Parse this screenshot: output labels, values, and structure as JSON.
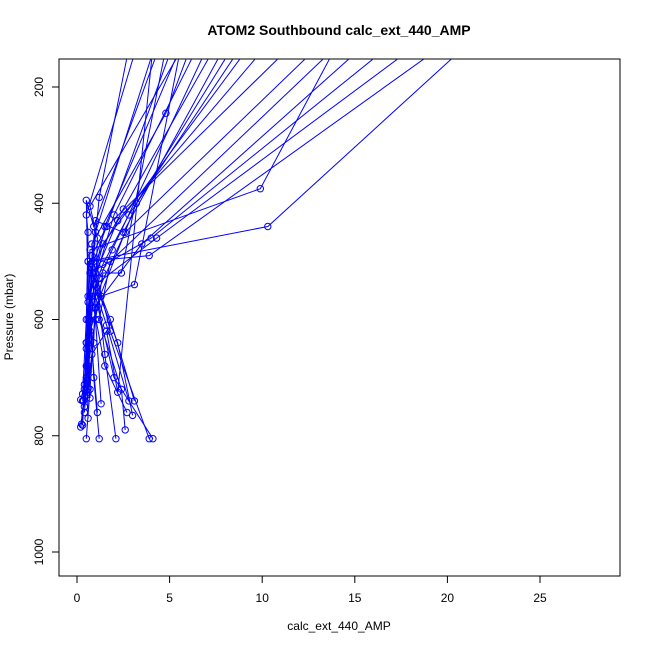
{
  "chart_data": {
    "type": "line",
    "title": "ATOM2 Southbound calc_ext_440_AMP",
    "xlabel": "calc_ext_440_AMP",
    "ylabel": "Pressure (mbar)",
    "xlim": [
      0,
      29
    ],
    "ylim": [
      1040,
      160
    ],
    "y_reversed": true,
    "xticks": [
      0,
      5,
      10,
      15,
      20,
      25
    ],
    "yticks": [
      200,
      400,
      600,
      800,
      1000
    ],
    "grid": false,
    "color": "#0000ff",
    "series": [
      {
        "points": [
          [
            0.2,
            785
          ],
          [
            0.5,
            700
          ],
          [
            0.8,
            520
          ],
          [
            1.2,
            390
          ],
          [
            3.0,
            100
          ]
        ]
      },
      {
        "points": [
          [
            0.3,
            782
          ],
          [
            0.4,
            720
          ],
          [
            0.6,
            600
          ],
          [
            1.0,
            450
          ],
          [
            4.5,
            100
          ]
        ]
      },
      {
        "points": [
          [
            0.25,
            780
          ],
          [
            0.35,
            740
          ],
          [
            0.5,
            650
          ],
          [
            0.9,
            500
          ],
          [
            5.5,
            100
          ]
        ]
      },
      {
        "points": [
          [
            0.3,
            740
          ],
          [
            0.5,
            680
          ],
          [
            0.7,
            560
          ],
          [
            1.5,
            440
          ],
          [
            6.0,
            100
          ]
        ]
      },
      {
        "points": [
          [
            0.2,
            738
          ],
          [
            0.6,
            690
          ],
          [
            0.9,
            540
          ],
          [
            2.0,
            420
          ],
          [
            7.0,
            100
          ]
        ]
      },
      {
        "points": [
          [
            0.4,
            750
          ],
          [
            0.5,
            640
          ],
          [
            0.8,
            510
          ],
          [
            2.5,
            410
          ],
          [
            8.0,
            100
          ]
        ]
      },
      {
        "points": [
          [
            0.5,
            805
          ],
          [
            0.7,
            720
          ],
          [
            1.0,
            580
          ],
          [
            3.2,
            400
          ],
          [
            9.0,
            100
          ]
        ]
      },
      {
        "points": [
          [
            1.2,
            805
          ],
          [
            0.9,
            700
          ],
          [
            0.7,
            560
          ],
          [
            1.4,
            470
          ],
          [
            10.0,
            100
          ]
        ]
      },
      {
        "points": [
          [
            2.1,
            805
          ],
          [
            1.5,
            660
          ],
          [
            1.0,
            520
          ],
          [
            2.2,
            430
          ],
          [
            11.0,
            100
          ]
        ]
      },
      {
        "points": [
          [
            3.9,
            805
          ],
          [
            1.8,
            620
          ],
          [
            0.8,
            490
          ],
          [
            1.6,
            440
          ],
          [
            12.5,
            100
          ]
        ]
      },
      {
        "points": [
          [
            4.1,
            805
          ],
          [
            2.0,
            700
          ],
          [
            1.0,
            560
          ],
          [
            2.6,
            450
          ],
          [
            14.0,
            100
          ]
        ]
      },
      {
        "points": [
          [
            2.6,
            790
          ],
          [
            2.4,
            720
          ],
          [
            1.2,
            600
          ],
          [
            1.8,
            500
          ],
          [
            15.0,
            100
          ]
        ]
      },
      {
        "points": [
          [
            2.7,
            760
          ],
          [
            1.5,
            680
          ],
          [
            0.9,
            580
          ],
          [
            3.5,
            470
          ],
          [
            16.5,
            100
          ]
        ]
      },
      {
        "points": [
          [
            2.8,
            740
          ],
          [
            1.6,
            610
          ],
          [
            0.7,
            520
          ],
          [
            4.0,
            460
          ],
          [
            18.0,
            100
          ]
        ]
      },
      {
        "points": [
          [
            3.0,
            765
          ],
          [
            2.2,
            640
          ],
          [
            1.0,
            540
          ],
          [
            4.3,
            460
          ],
          [
            19.5,
            100
          ]
        ]
      },
      {
        "points": [
          [
            3.1,
            740
          ],
          [
            1.8,
            600
          ],
          [
            0.6,
            500
          ],
          [
            3.9,
            490
          ],
          [
            21.0,
            100
          ]
        ]
      },
      {
        "points": [
          [
            1.3,
            745
          ],
          [
            1.0,
            600
          ],
          [
            0.8,
            470
          ],
          [
            4.8,
            245
          ],
          [
            6.5,
            100
          ]
        ]
      },
      {
        "points": [
          [
            1.1,
            760
          ],
          [
            0.8,
            650
          ],
          [
            0.6,
            500
          ],
          [
            10.3,
            440
          ],
          [
            22.0,
            100
          ]
        ]
      },
      {
        "points": [
          [
            0.6,
            770
          ],
          [
            0.5,
            640
          ],
          [
            0.7,
            480
          ],
          [
            9.9,
            375
          ],
          [
            14.5,
            100
          ]
        ]
      },
      {
        "points": [
          [
            0.4,
            760
          ],
          [
            0.6,
            680
          ],
          [
            1.4,
            520
          ],
          [
            2.4,
            520
          ],
          [
            5.0,
            100
          ]
        ]
      },
      {
        "points": [
          [
            0.5,
            730
          ],
          [
            0.7,
            620
          ],
          [
            1.3,
            560
          ],
          [
            3.1,
            540
          ],
          [
            5.8,
            100
          ]
        ]
      },
      {
        "points": [
          [
            0.6,
            725
          ],
          [
            0.8,
            660
          ],
          [
            1.6,
            620
          ],
          [
            2.2,
            725
          ],
          [
            4.2,
            100
          ]
        ]
      },
      {
        "points": [
          [
            0.3,
            728
          ],
          [
            0.5,
            600
          ],
          [
            0.6,
            450
          ],
          [
            0.5,
            420
          ],
          [
            3.5,
            100
          ]
        ]
      },
      {
        "points": [
          [
            0.7,
            735
          ],
          [
            0.6,
            570
          ],
          [
            0.5,
            395
          ],
          [
            0.9,
            440
          ],
          [
            4.8,
            100
          ]
        ]
      },
      {
        "points": [
          [
            0.5,
            730
          ],
          [
            0.9,
            640
          ],
          [
            1.1,
            460
          ],
          [
            0.7,
            405
          ],
          [
            6.3,
            100
          ]
        ]
      },
      {
        "points": [
          [
            0.6,
            718
          ],
          [
            0.7,
            600
          ],
          [
            1.2,
            530
          ],
          [
            1.9,
            480
          ],
          [
            7.5,
            100
          ]
        ]
      },
      {
        "points": [
          [
            0.4,
            712
          ],
          [
            0.6,
            560
          ],
          [
            1.0,
            430
          ],
          [
            2.5,
            450
          ],
          [
            8.5,
            100
          ]
        ]
      },
      {
        "points": [
          [
            0.5,
            705
          ],
          [
            0.8,
            560
          ],
          [
            1.4,
            505
          ],
          [
            2.8,
            420
          ],
          [
            9.5,
            100
          ]
        ]
      }
    ]
  }
}
